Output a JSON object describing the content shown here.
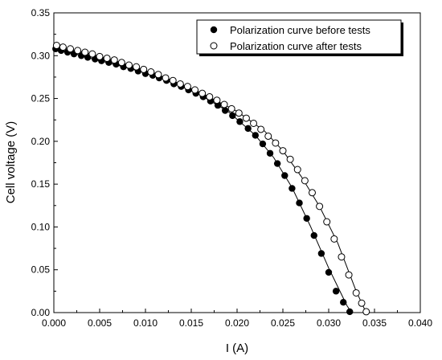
{
  "chart_data": {
    "type": "scatter",
    "xlabel": "I (A)",
    "ylabel": "Cell voltage (V)",
    "xlim": [
      0.0,
      0.04
    ],
    "ylim": [
      0.0,
      0.35
    ],
    "x_ticks": [
      "0.000",
      "0.005",
      "0.010",
      "0.015",
      "0.020",
      "0.025",
      "0.030",
      "0.035",
      "0.040"
    ],
    "y_ticks": [
      "0.00",
      "0.05",
      "0.10",
      "0.15",
      "0.20",
      "0.25",
      "0.30",
      "0.35"
    ],
    "legend_position": "top-right",
    "series": [
      {
        "name": "Polarization curve before tests",
        "marker": "filled-circle",
        "color": "#000000",
        "points": [
          [
            0.0002,
            0.308
          ],
          [
            0.0008,
            0.306
          ],
          [
            0.0015,
            0.304
          ],
          [
            0.0022,
            0.302
          ],
          [
            0.003,
            0.3
          ],
          [
            0.0037,
            0.298
          ],
          [
            0.0045,
            0.296
          ],
          [
            0.0052,
            0.294
          ],
          [
            0.006,
            0.292
          ],
          [
            0.0068,
            0.29
          ],
          [
            0.0076,
            0.287
          ],
          [
            0.0084,
            0.285
          ],
          [
            0.0092,
            0.282
          ],
          [
            0.01,
            0.279
          ],
          [
            0.0108,
            0.277
          ],
          [
            0.0115,
            0.274
          ],
          [
            0.0123,
            0.271
          ],
          [
            0.0131,
            0.267
          ],
          [
            0.0139,
            0.264
          ],
          [
            0.0147,
            0.26
          ],
          [
            0.0155,
            0.256
          ],
          [
            0.0163,
            0.252
          ],
          [
            0.0171,
            0.247
          ],
          [
            0.0179,
            0.242
          ],
          [
            0.0187,
            0.236
          ],
          [
            0.0195,
            0.23
          ],
          [
            0.0203,
            0.223
          ],
          [
            0.0212,
            0.215
          ],
          [
            0.022,
            0.207
          ],
          [
            0.0228,
            0.197
          ],
          [
            0.0236,
            0.186
          ],
          [
            0.0244,
            0.174
          ],
          [
            0.0252,
            0.16
          ],
          [
            0.026,
            0.145
          ],
          [
            0.0268,
            0.128
          ],
          [
            0.0276,
            0.11
          ],
          [
            0.0284,
            0.09
          ],
          [
            0.0292,
            0.069
          ],
          [
            0.03,
            0.047
          ],
          [
            0.0308,
            0.025
          ],
          [
            0.0316,
            0.012
          ],
          [
            0.0323,
            0.001
          ]
        ],
        "fit_line": [
          [
            0.0,
            0.309
          ],
          [
            0.004,
            0.297
          ],
          [
            0.008,
            0.286
          ],
          [
            0.012,
            0.273
          ],
          [
            0.016,
            0.254
          ],
          [
            0.019,
            0.235
          ],
          [
            0.022,
            0.207
          ],
          [
            0.024,
            0.181
          ],
          [
            0.026,
            0.146
          ],
          [
            0.028,
            0.101
          ],
          [
            0.03,
            0.052
          ],
          [
            0.031,
            0.03
          ],
          [
            0.032,
            0.008
          ],
          [
            0.0325,
            0.0
          ]
        ]
      },
      {
        "name": "Polarization curve after tests",
        "marker": "open-circle",
        "color": "#000000",
        "points": [
          [
            0.0003,
            0.312
          ],
          [
            0.001,
            0.31
          ],
          [
            0.0018,
            0.308
          ],
          [
            0.0026,
            0.306
          ],
          [
            0.0034,
            0.304
          ],
          [
            0.0042,
            0.302
          ],
          [
            0.005,
            0.299
          ],
          [
            0.0058,
            0.297
          ],
          [
            0.0066,
            0.295
          ],
          [
            0.0074,
            0.292
          ],
          [
            0.0082,
            0.289
          ],
          [
            0.009,
            0.287
          ],
          [
            0.0098,
            0.284
          ],
          [
            0.0106,
            0.281
          ],
          [
            0.0114,
            0.278
          ],
          [
            0.0122,
            0.274
          ],
          [
            0.013,
            0.271
          ],
          [
            0.0138,
            0.267
          ],
          [
            0.0146,
            0.264
          ],
          [
            0.0154,
            0.26
          ],
          [
            0.0162,
            0.256
          ],
          [
            0.017,
            0.252
          ],
          [
            0.0178,
            0.248
          ],
          [
            0.0186,
            0.243
          ],
          [
            0.0194,
            0.238
          ],
          [
            0.0202,
            0.233
          ],
          [
            0.021,
            0.227
          ],
          [
            0.0218,
            0.221
          ],
          [
            0.0226,
            0.214
          ],
          [
            0.0234,
            0.206
          ],
          [
            0.0242,
            0.198
          ],
          [
            0.025,
            0.189
          ],
          [
            0.0258,
            0.179
          ],
          [
            0.0266,
            0.167
          ],
          [
            0.0274,
            0.154
          ],
          [
            0.0282,
            0.14
          ],
          [
            0.029,
            0.124
          ],
          [
            0.0298,
            0.106
          ],
          [
            0.0306,
            0.086
          ],
          [
            0.0314,
            0.065
          ],
          [
            0.0322,
            0.044
          ],
          [
            0.033,
            0.023
          ],
          [
            0.0336,
            0.011
          ],
          [
            0.0341,
            0.001
          ]
        ],
        "fit_line": [
          [
            0.0,
            0.312
          ],
          [
            0.004,
            0.302
          ],
          [
            0.008,
            0.29
          ],
          [
            0.012,
            0.275
          ],
          [
            0.016,
            0.257
          ],
          [
            0.02,
            0.235
          ],
          [
            0.023,
            0.212
          ],
          [
            0.025,
            0.189
          ],
          [
            0.027,
            0.159
          ],
          [
            0.029,
            0.124
          ],
          [
            0.031,
            0.081
          ],
          [
            0.033,
            0.025
          ],
          [
            0.034,
            0.002
          ],
          [
            0.0341,
            0.0
          ]
        ]
      }
    ]
  }
}
